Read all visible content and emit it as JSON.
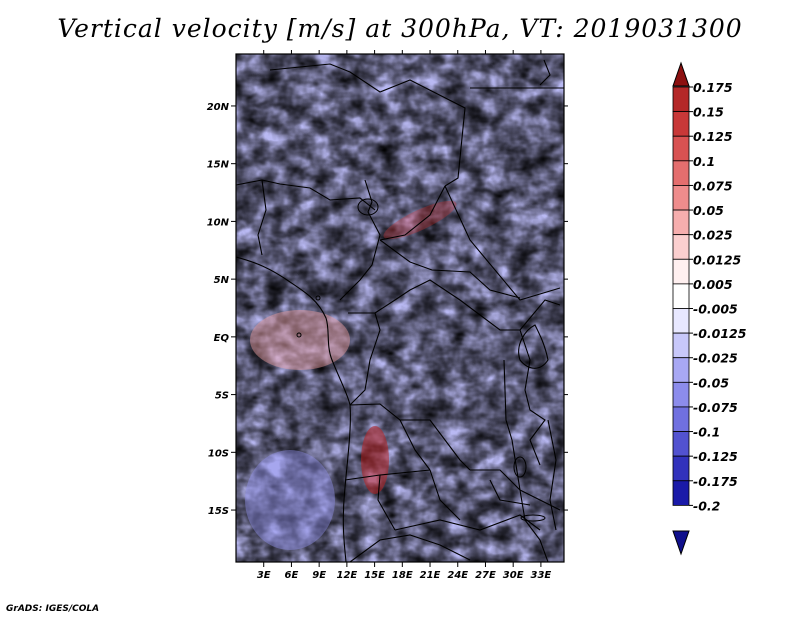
{
  "title": "Vertical velocity [m/s] at 300hPa, VT: 2019031300",
  "credit": "GrADS: IGES/COLA",
  "map": {
    "variable": "Vertical velocity",
    "units": "m/s",
    "level": "300hPa",
    "valid_time": "2019031300",
    "lat_range": [
      -19.5,
      24.5
    ],
    "lon_range": [
      0,
      35.5
    ],
    "lat_ticks": [
      {
        "value": 20,
        "label": "20N"
      },
      {
        "value": 15,
        "label": "15N"
      },
      {
        "value": 10,
        "label": "10N"
      },
      {
        "value": 5,
        "label": "5N"
      },
      {
        "value": 0,
        "label": "EQ"
      },
      {
        "value": -5,
        "label": "5S"
      },
      {
        "value": -10,
        "label": "10S"
      },
      {
        "value": -15,
        "label": "15S"
      }
    ],
    "lon_ticks": [
      {
        "value": 3,
        "label": "3E"
      },
      {
        "value": 6,
        "label": "6E"
      },
      {
        "value": 9,
        "label": "9E"
      },
      {
        "value": 12,
        "label": "12E"
      },
      {
        "value": 15,
        "label": "15E"
      },
      {
        "value": 18,
        "label": "18E"
      },
      {
        "value": 21,
        "label": "21E"
      },
      {
        "value": 24,
        "label": "24E"
      },
      {
        "value": 27,
        "label": "27E"
      },
      {
        "value": 30,
        "label": "30E"
      },
      {
        "value": 33,
        "label": "33E"
      }
    ]
  },
  "colorbar": {
    "labels": [
      "0.175",
      "0.15",
      "0.125",
      "0.1",
      "0.075",
      "0.05",
      "0.025",
      "0.0125",
      "0.005",
      "-0.005",
      "-0.0125",
      "-0.025",
      "-0.05",
      "-0.075",
      "-0.1",
      "-0.125",
      "-0.175",
      "-0.2"
    ],
    "colors": [
      "#a01818",
      "#b42828",
      "#c83838",
      "#d85252",
      "#e46e6e",
      "#ee8c8c",
      "#f6aeae",
      "#fbcfcf",
      "#fff0f0",
      "#ffffff",
      "#e8e8ff",
      "#c8c8fa",
      "#a8a8f4",
      "#8c8cec",
      "#7070e0",
      "#5252d0",
      "#3232bc",
      "#1a1aa8",
      "#10108c"
    ],
    "over_color": "#8c1010",
    "under_color": "#10108c"
  }
}
